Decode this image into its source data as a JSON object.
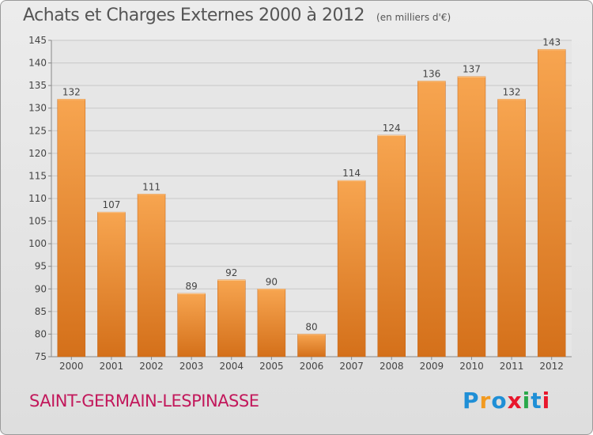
{
  "header": {
    "title": "Achats et Charges Externes 2000 à 2012",
    "subtitle": "(en milliers d'€)"
  },
  "footer": {
    "commune": "SAINT-GERMAIN-LESPINASSE"
  },
  "logo": {
    "text": "Proxiti",
    "colors": [
      "#1f8fd6",
      "#f29a1f",
      "#1f8fd6",
      "#e8162c",
      "#2aa84a",
      "#1f8fd6",
      "#e8162c"
    ]
  },
  "colors": {
    "bar_top": "#f7a550",
    "bar_bottom": "#d4701a",
    "grid": "#c8c8c8",
    "axis_text": "#444444",
    "label_text": "#444444"
  },
  "chart_data": {
    "type": "bar",
    "categories": [
      "2000",
      "2001",
      "2002",
      "2003",
      "2004",
      "2005",
      "2006",
      "2007",
      "2008",
      "2009",
      "2010",
      "2011",
      "2012"
    ],
    "values": [
      132,
      107,
      111,
      89,
      92,
      90,
      80,
      114,
      124,
      136,
      137,
      132,
      143
    ],
    "ylim": [
      75,
      145
    ],
    "yticks": [
      75,
      80,
      85,
      90,
      95,
      100,
      105,
      110,
      115,
      120,
      125,
      130,
      135,
      140,
      145
    ],
    "grid": true
  }
}
